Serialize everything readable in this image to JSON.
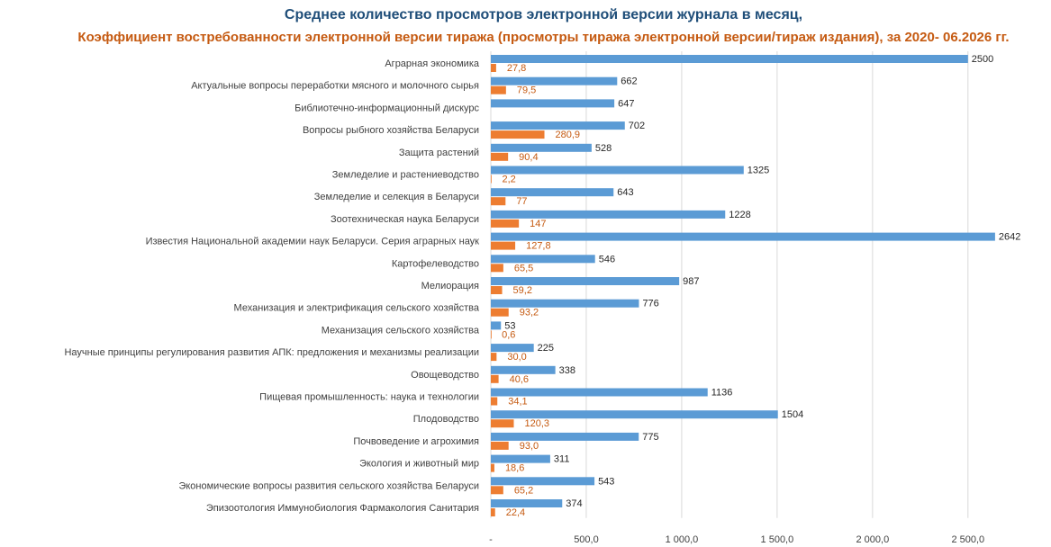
{
  "chart_data": {
    "type": "bar",
    "orientation": "horizontal",
    "title": "Среднее количество просмотров электронной версии журнала в месяц,",
    "subtitle": "Коэффициент востребованности электронной версии тиража (просмотры тиража электронной версии/тираж издания), за 2020- 06.2026 гг.",
    "xlim": [
      0,
      2600
    ],
    "x_ticks": [
      "-",
      "500,0",
      "1 000,0",
      "1 500,0",
      "2 000,0",
      "2 500,0"
    ],
    "grid": "vertical",
    "colors": {
      "views": "#5B9BD5",
      "coefficient": "#ED7D31",
      "title": "#1F4E79",
      "subtitle": "#C55A11"
    },
    "categories": [
      "Аграрная экономика",
      "Актуальные вопросы переработки мясного и молочного сырья",
      "Библиотечно-информационный  дискурс",
      "Вопросы рыбного хозяйства Беларуси",
      "Защита растений",
      "Земледелие  и растениеводство",
      "Земледелие  и селекция  в Беларуси",
      "Зоотехническая  наука Беларуси",
      "Известия  Национальной академии наук Беларуси. Серия аграрных наук",
      "Картофелеводство",
      "Мелиорация",
      "Механизация и электрификация сельского хозяйства",
      "Механизация сельского хозяйства",
      "Научные принципы регулирования развития АПК: предложения  и механизмы реализации",
      "Овощеводство",
      "Пищевая промышленность:  наука и технологии",
      "Плодоводство",
      "Почвоведение  и агрохимия",
      "Экология и животный мир",
      "Экономические  вопросы развития  сельского хозяйства Беларуси",
      "Эпизоотология Иммунобиология Фармакология Санитария"
    ],
    "series": [
      {
        "key": "views",
        "values": [
          2500,
          662,
          647,
          702,
          528,
          1325,
          643,
          1228,
          2642,
          546,
          987,
          776,
          53,
          225,
          338,
          1136,
          1504,
          775,
          311,
          543,
          374
        ],
        "labels": [
          "2500",
          "662",
          "647",
          "702",
          "528",
          "1325",
          "643",
          "1228",
          "2642",
          "546",
          "987",
          "776",
          "53",
          "225",
          "338",
          "1136",
          "1504",
          "775",
          "311",
          "543",
          "374"
        ]
      },
      {
        "key": "coefficient",
        "values": [
          27.8,
          79.5,
          null,
          280.9,
          90.4,
          2.2,
          77,
          147,
          127.8,
          65.5,
          59.2,
          93.2,
          0.6,
          30.0,
          40.6,
          34.1,
          120.3,
          93.0,
          18.6,
          65.2,
          22.4
        ],
        "labels": [
          "27,8",
          "79,5",
          "",
          "280,9",
          "90,4",
          "2,2",
          "77",
          "147",
          "127,8",
          "65,5",
          "59,2",
          "93,2",
          "0,6",
          "30,0",
          "40,6",
          "34,1",
          "120,3",
          "93,0",
          "18,6",
          "65,2",
          "22,4"
        ]
      }
    ]
  }
}
